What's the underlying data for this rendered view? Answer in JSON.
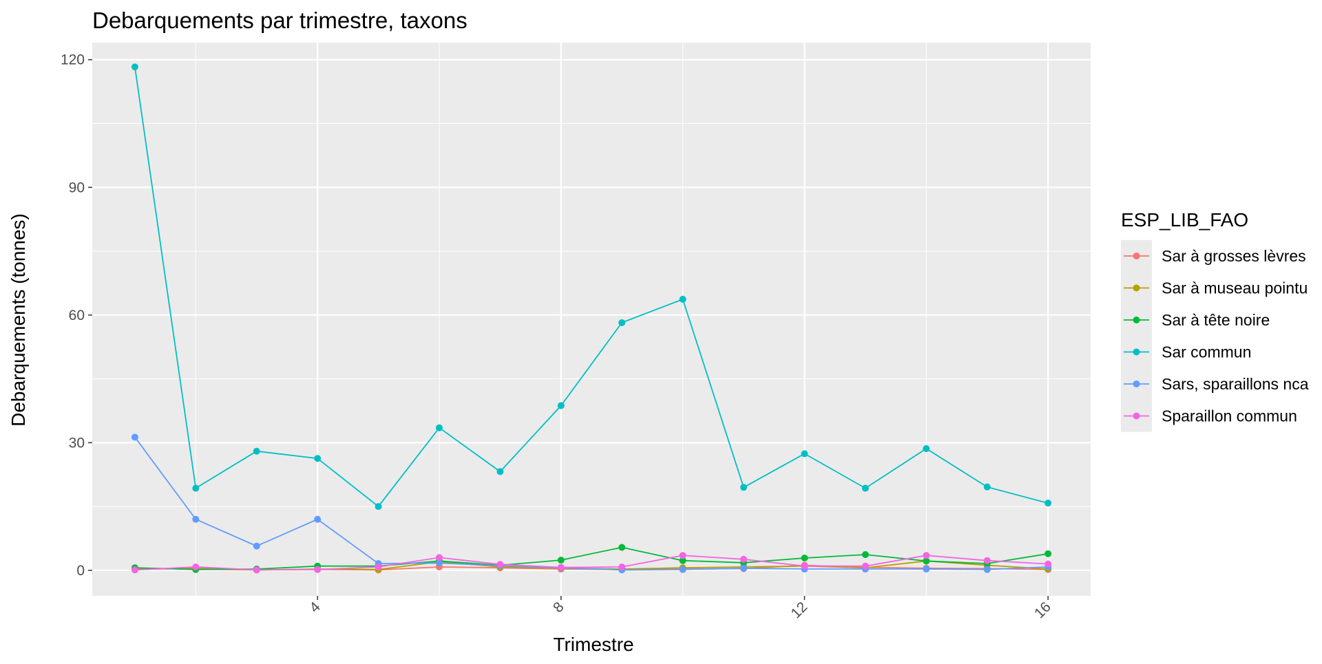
{
  "chart_data": {
    "type": "line",
    "title": "Debarquements par trimestre, taxons",
    "xlabel": "Trimestre",
    "ylabel": "Debarquements (tonnes)",
    "xlim": [
      0.3,
      16.7
    ],
    "ylim": [
      -6,
      124
    ],
    "x_ticks": [
      4,
      8,
      12,
      16
    ],
    "x_tick_labels": [
      "4",
      "8",
      "12",
      "16"
    ],
    "y_ticks": [
      0,
      30,
      60,
      90,
      120
    ],
    "y_tick_labels": [
      "0",
      "30",
      "60",
      "90",
      "120"
    ],
    "grid": true,
    "panel_background": "#ebebeb",
    "legend": {
      "title": "ESP_LIB_FAO",
      "position": "right"
    },
    "x": [
      1,
      2,
      3,
      4,
      5,
      6,
      7,
      8,
      9,
      10,
      11,
      12,
      13,
      14,
      15,
      16
    ],
    "series": [
      {
        "name": "Sar à grosses lèvres",
        "color": "#F8766D",
        "values": [
          0.2,
          0.5,
          0.1,
          0.2,
          0.1,
          0.8,
          0.6,
          0.3,
          0.2,
          0.3,
          0.4,
          1.2,
          0.7,
          0.5,
          0.4,
          0.2
        ]
      },
      {
        "name": "Sar à museau pointu",
        "color": "#B79F00",
        "values": [
          0.5,
          0.3,
          0.1,
          0.3,
          0.2,
          2.0,
          0.8,
          0.5,
          0.3,
          0.6,
          0.8,
          1.0,
          0.6,
          2.2,
          1.2,
          0.3
        ]
      },
      {
        "name": "Sar à tête noire",
        "color": "#00BA38",
        "values": [
          0.6,
          0.2,
          0.3,
          1.0,
          1.0,
          2.2,
          1.2,
          2.4,
          5.4,
          2.3,
          1.8,
          2.9,
          3.7,
          2.2,
          1.6,
          3.9
        ]
      },
      {
        "name": "Sar commun",
        "color": "#00BFC4",
        "values": [
          118.3,
          19.3,
          28.0,
          26.3,
          15.0,
          33.5,
          23.2,
          38.7,
          58.2,
          63.7,
          19.5,
          27.4,
          19.3,
          28.6,
          19.6,
          15.8
        ]
      },
      {
        "name": "Sars, sparaillons nca",
        "color": "#619CFF",
        "values": [
          31.3,
          12.0,
          5.7,
          12.0,
          1.6,
          1.7,
          1.1,
          0.6,
          0.1,
          0.2,
          0.5,
          0.3,
          0.3,
          0.3,
          0.2,
          0.8
        ]
      },
      {
        "name": "Sparaillon commun",
        "color": "#F564E3",
        "values": [
          0.1,
          0.8,
          0.1,
          0.2,
          0.8,
          3.0,
          1.4,
          0.7,
          0.8,
          3.5,
          2.6,
          1.0,
          1.0,
          3.5,
          2.3,
          1.5
        ]
      }
    ]
  }
}
